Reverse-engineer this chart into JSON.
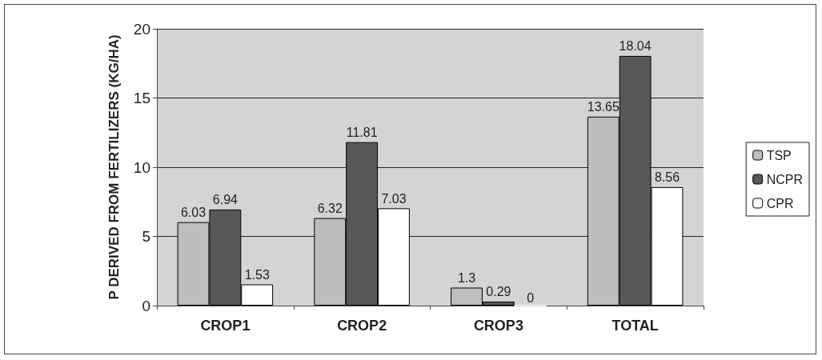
{
  "chart_data": {
    "type": "bar",
    "ylabel": "P DERIVED FROM FERTILIZERS (KG/HA)",
    "categories": [
      "CROP1",
      "CROP2",
      "CROP3",
      "TOTAL"
    ],
    "series": [
      {
        "name": "TSP",
        "color": "#bdbdbd",
        "values": [
          6.03,
          6.32,
          1.3,
          13.65
        ]
      },
      {
        "name": "NCPR",
        "color": "#585858",
        "values": [
          6.94,
          11.81,
          0.29,
          18.04
        ]
      },
      {
        "name": "CPR",
        "color": "#ffffff",
        "values": [
          1.53,
          7.03,
          0,
          8.56
        ]
      }
    ],
    "ylim": [
      0,
      20
    ],
    "yticks": [
      0,
      5,
      10,
      15,
      20
    ],
    "grid": "y",
    "legend": "right",
    "data_labels": true
  }
}
